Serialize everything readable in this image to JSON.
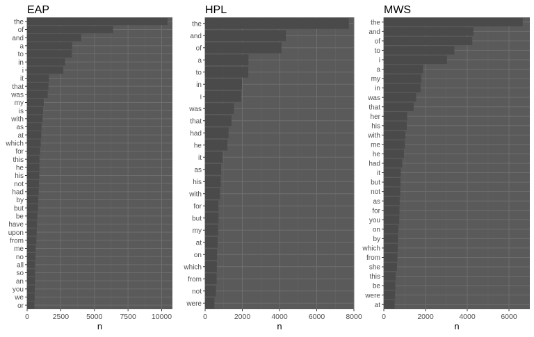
{
  "chart_data": [
    {
      "type": "bar",
      "orientation": "horizontal",
      "title": "EAP",
      "xlabel": "n",
      "ylabel": "",
      "xlim": [
        0,
        10800
      ],
      "xticks": [
        0,
        2500,
        5000,
        7500,
        10000
      ],
      "xtick_labels": [
        "0",
        "2500",
        "5000",
        "7500",
        "10000"
      ],
      "grid": true,
      "categories": [
        "the",
        "of",
        "and",
        "a",
        "to",
        "in",
        "i",
        "it",
        "that",
        "was",
        "my",
        "is",
        "with",
        "as",
        "at",
        "which",
        "for",
        "this",
        "he",
        "his",
        "not",
        "had",
        "by",
        "but",
        "be",
        "have",
        "upon",
        "from",
        "me",
        "no",
        "all",
        "so",
        "an",
        "you",
        "we",
        "or"
      ],
      "values": [
        10440,
        6390,
        4020,
        3350,
        3330,
        2820,
        2690,
        1620,
        1590,
        1530,
        1240,
        1180,
        1150,
        1070,
        1050,
        1010,
        960,
        920,
        910,
        900,
        880,
        860,
        830,
        810,
        760,
        730,
        710,
        690,
        640,
        610,
        600,
        590,
        580,
        570,
        560,
        540
      ]
    },
    {
      "type": "bar",
      "orientation": "horizontal",
      "title": "HPL",
      "xlabel": "n",
      "ylabel": "",
      "xlim": [
        0,
        8000
      ],
      "xticks": [
        0,
        2000,
        4000,
        6000,
        8000
      ],
      "xtick_labels": [
        "0",
        "2000",
        "4000",
        "6000",
        "8000"
      ],
      "grid": true,
      "categories": [
        "the",
        "and",
        "of",
        "a",
        "to",
        "in",
        "i",
        "was",
        "that",
        "had",
        "he",
        "it",
        "as",
        "his",
        "with",
        "for",
        "but",
        "my",
        "at",
        "on",
        "which",
        "from",
        "not",
        "were"
      ],
      "values": [
        7730,
        4340,
        4110,
        2330,
        2320,
        1980,
        1940,
        1550,
        1420,
        1260,
        1200,
        940,
        860,
        840,
        800,
        720,
        720,
        700,
        670,
        640,
        630,
        620,
        580,
        500
      ]
    },
    {
      "type": "bar",
      "orientation": "horizontal",
      "title": "MWS",
      "xlabel": "n",
      "ylabel": "",
      "xlim": [
        0,
        7000
      ],
      "xticks": [
        0,
        2000,
        4000,
        6000
      ],
      "xtick_labels": [
        "0",
        "2000",
        "4000",
        "6000"
      ],
      "grid": true,
      "categories": [
        "the",
        "and",
        "of",
        "to",
        "i",
        "a",
        "my",
        "in",
        "was",
        "that",
        "her",
        "his",
        "with",
        "me",
        "he",
        "had",
        "it",
        "but",
        "not",
        "as",
        "for",
        "you",
        "on",
        "by",
        "which",
        "from",
        "she",
        "this",
        "be",
        "were",
        "at"
      ],
      "values": [
        6660,
        4290,
        4240,
        3380,
        3030,
        1880,
        1800,
        1760,
        1550,
        1430,
        1120,
        1100,
        1030,
        1010,
        970,
        880,
        810,
        800,
        790,
        760,
        750,
        740,
        700,
        680,
        670,
        650,
        630,
        570,
        550,
        540,
        520
      ]
    }
  ],
  "colors": {
    "panel_background": "#5a5a5a",
    "bar_fill": "#4a4a4a",
    "grid_major": "#6e6e6e",
    "grid_minor": "#646464",
    "axis_text": "#4d4d4d",
    "title_text": "#000000"
  }
}
